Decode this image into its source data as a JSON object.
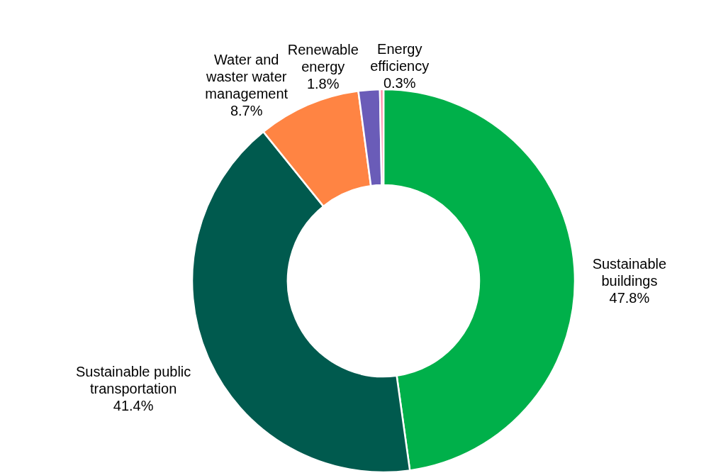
{
  "chart_data": {
    "type": "donut",
    "categories": [
      "Sustainable buildings",
      "Sustainable public transportation",
      "Water and waster water management",
      "Renewable energy",
      "Energy efficiency"
    ],
    "values": [
      47.8,
      41.4,
      8.7,
      1.8,
      0.3
    ],
    "colors": [
      "#00b04a",
      "#005a4e",
      "#ff8443",
      "#6a5cb8",
      "#ff8fa8"
    ],
    "value_labels": [
      "47.8%",
      "41.4%",
      "8.7%",
      "1.8%",
      "0.3%"
    ]
  }
}
